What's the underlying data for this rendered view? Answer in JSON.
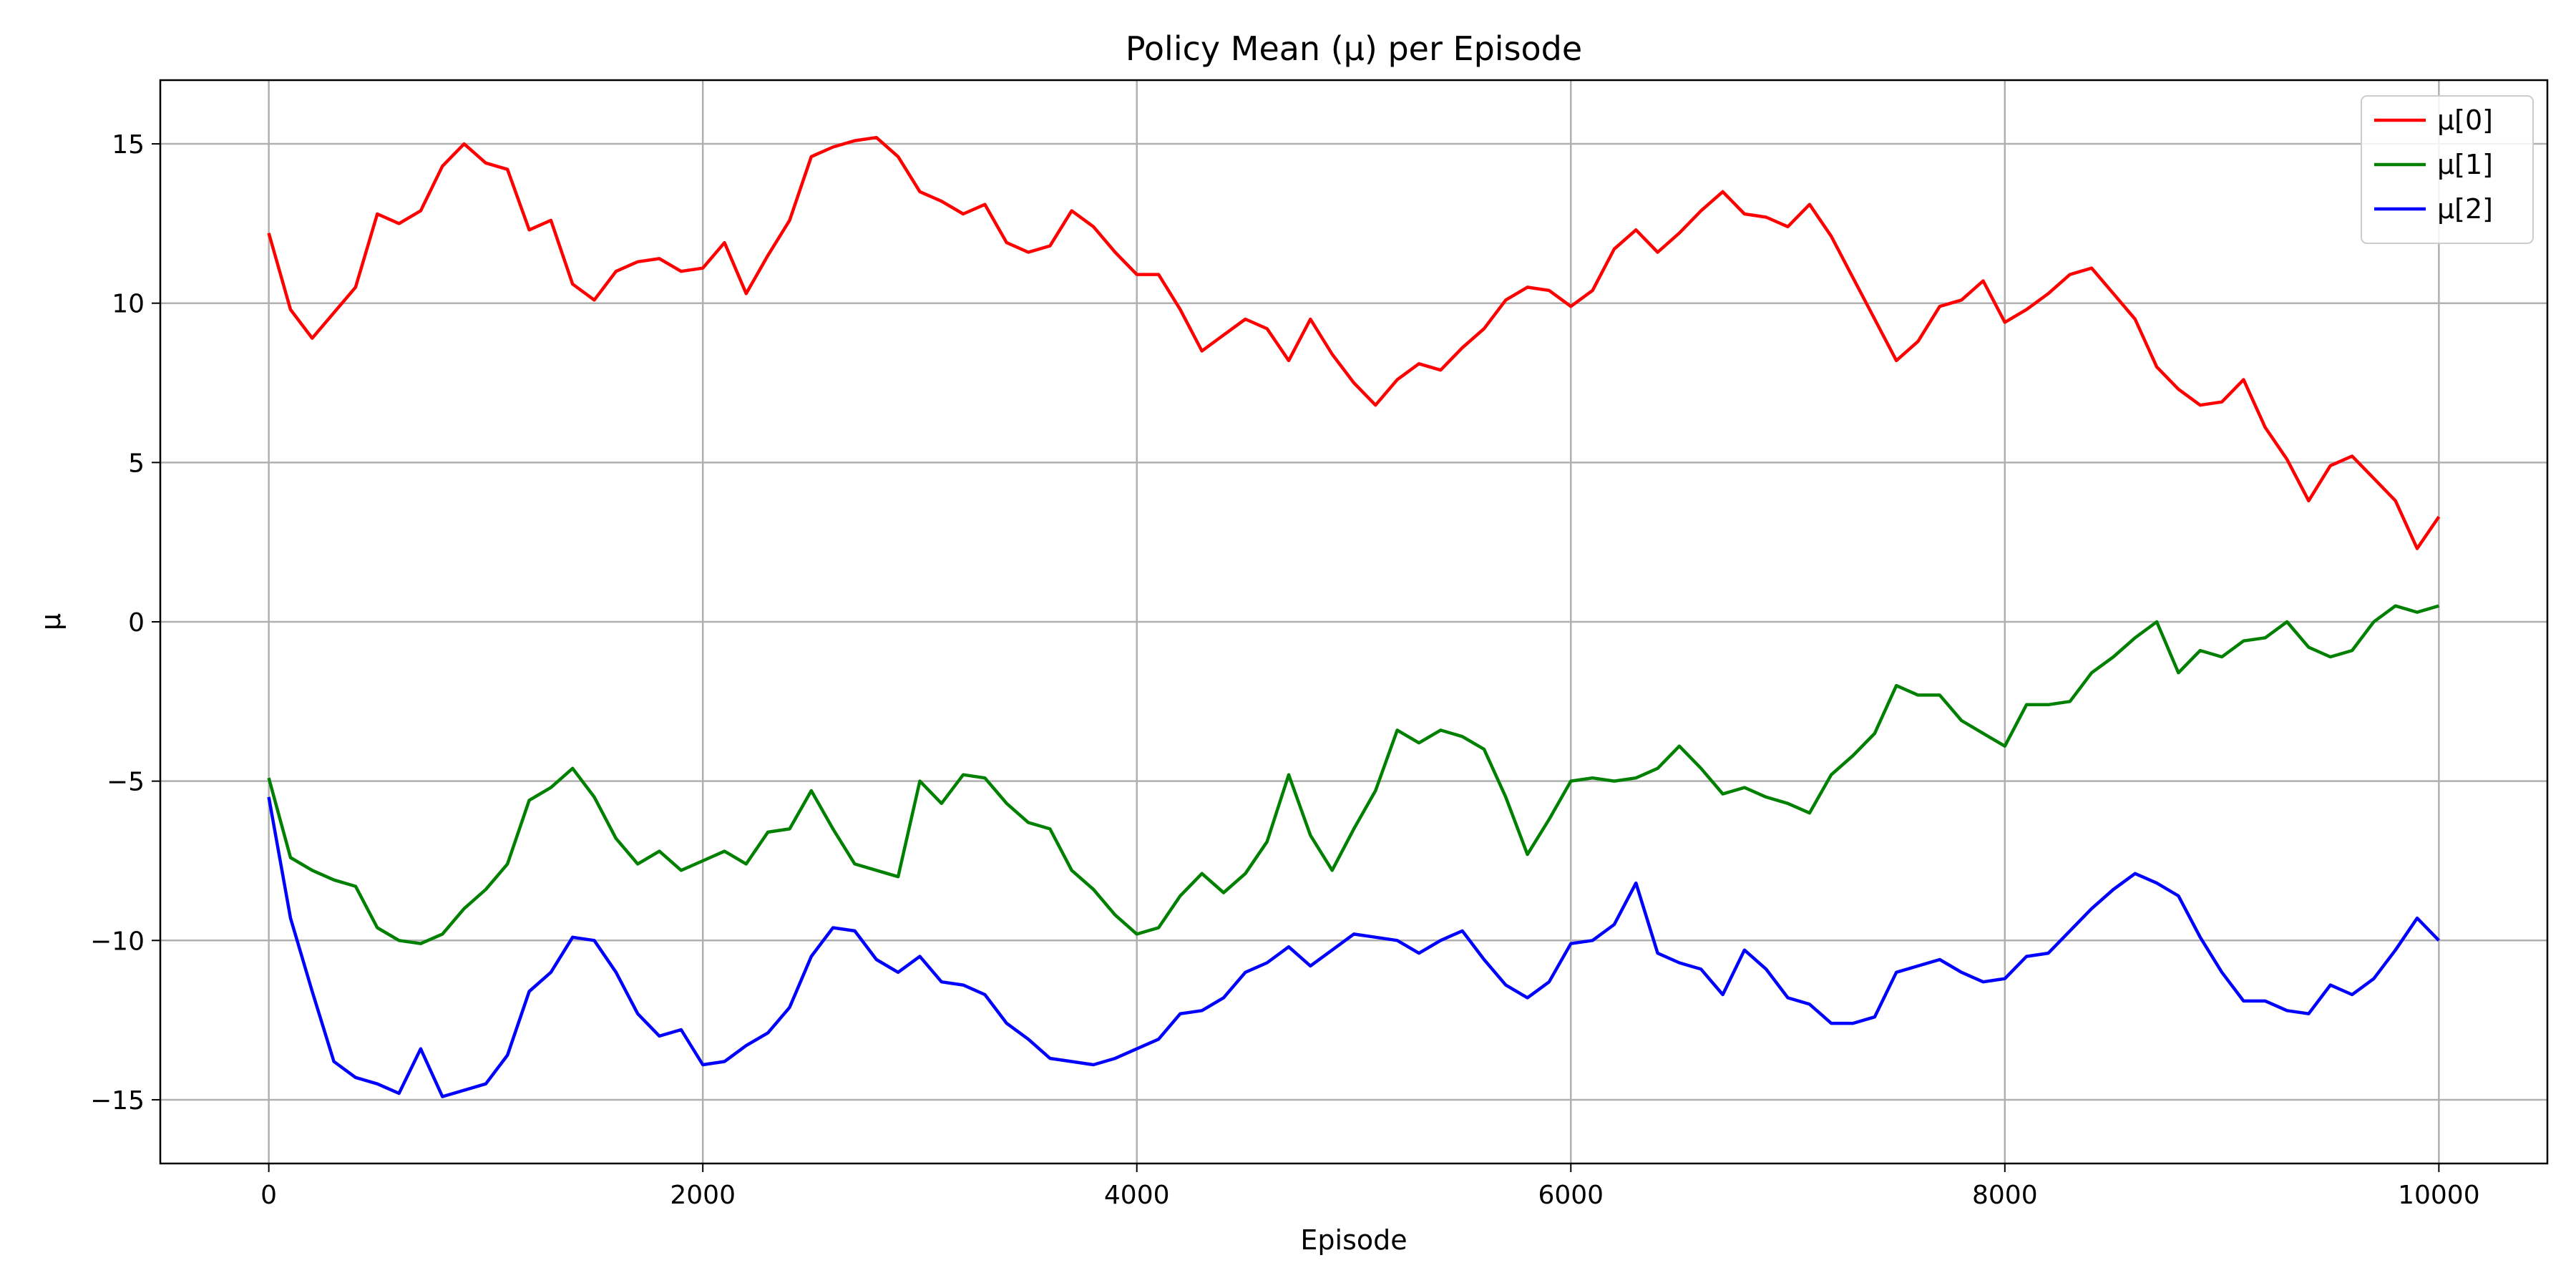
{
  "chart_data": {
    "type": "line",
    "title": "Policy Mean (μ) per Episode",
    "xlabel": "Episode",
    "ylabel": "μ",
    "xlim": [
      -500,
      10500
    ],
    "ylim": [
      -17,
      17
    ],
    "xticks": [
      0,
      2000,
      4000,
      6000,
      8000,
      10000
    ],
    "xtick_labels": [
      "0",
      "2000",
      "4000",
      "6000",
      "8000",
      "10000"
    ],
    "yticks": [
      -15,
      -10,
      -5,
      0,
      5,
      10,
      15
    ],
    "ytick_labels": [
      "−15",
      "−10",
      "−5",
      "0",
      "5",
      "10",
      "15"
    ],
    "grid": true,
    "legend_position": "top-right",
    "series": [
      {
        "name": "μ[0]",
        "color": "#ff0000",
        "x": [
          0,
          100,
          200,
          300,
          400,
          500,
          600,
          700,
          800,
          900,
          1000,
          1100,
          1200,
          1300,
          1400,
          1500,
          1600,
          1700,
          1800,
          1900,
          2000,
          2100,
          2200,
          2300,
          2400,
          2500,
          2600,
          2700,
          2800,
          2900,
          3000,
          3100,
          3200,
          3300,
          3400,
          3500,
          3600,
          3700,
          3800,
          3900,
          4000,
          4100,
          4200,
          4300,
          4400,
          4500,
          4600,
          4700,
          4800,
          4900,
          5000,
          5100,
          5200,
          5300,
          5400,
          5500,
          5600,
          5700,
          5800,
          5900,
          6000,
          6100,
          6200,
          6300,
          6400,
          6500,
          6600,
          6700,
          6800,
          6900,
          7000,
          7100,
          7200,
          7300,
          7400,
          7500,
          7600,
          7700,
          7800,
          7900,
          8000,
          8100,
          8200,
          8300,
          8400,
          8500,
          8600,
          8700,
          8800,
          8900,
          9000,
          9100,
          9200,
          9300,
          9400,
          9500,
          9600,
          9700,
          9800,
          9900,
          10000
        ],
        "y": [
          12.2,
          9.8,
          8.9,
          9.7,
          10.5,
          12.8,
          12.5,
          12.9,
          14.3,
          15.0,
          14.4,
          14.2,
          12.3,
          12.6,
          10.6,
          10.1,
          11.0,
          11.3,
          11.4,
          11.0,
          11.1,
          11.9,
          10.3,
          11.5,
          12.6,
          14.6,
          14.9,
          15.1,
          15.2,
          14.6,
          13.5,
          13.2,
          12.8,
          13.1,
          11.9,
          11.6,
          11.8,
          12.9,
          12.4,
          11.6,
          10.9,
          10.9,
          9.8,
          8.5,
          9.0,
          9.5,
          9.2,
          8.2,
          9.5,
          8.4,
          7.5,
          6.8,
          7.6,
          8.1,
          7.9,
          8.6,
          9.2,
          10.1,
          10.5,
          10.4,
          9.9,
          10.4,
          11.7,
          12.3,
          11.6,
          12.2,
          12.9,
          13.5,
          12.8,
          12.7,
          12.4,
          13.1,
          12.1,
          10.8,
          9.5,
          8.2,
          8.8,
          9.9,
          10.1,
          10.7,
          9.4,
          9.8,
          10.3,
          10.9,
          11.1,
          10.3,
          9.5,
          8.0,
          7.3,
          6.8,
          6.9,
          7.6,
          6.1,
          5.1,
          3.8,
          4.9,
          5.2,
          4.5,
          3.8,
          2.3,
          3.3
        ]
      },
      {
        "name": "μ[1]",
        "color": "#008000",
        "x": [
          0,
          100,
          200,
          300,
          400,
          500,
          600,
          700,
          800,
          900,
          1000,
          1100,
          1200,
          1300,
          1400,
          1500,
          1600,
          1700,
          1800,
          1900,
          2000,
          2100,
          2200,
          2300,
          2400,
          2500,
          2600,
          2700,
          2800,
          2900,
          3000,
          3100,
          3200,
          3300,
          3400,
          3500,
          3600,
          3700,
          3800,
          3900,
          4000,
          4100,
          4200,
          4300,
          4400,
          4500,
          4600,
          4700,
          4800,
          4900,
          5000,
          5100,
          5200,
          5300,
          5400,
          5500,
          5600,
          5700,
          5800,
          5900,
          6000,
          6100,
          6200,
          6300,
          6400,
          6500,
          6600,
          6700,
          6800,
          6900,
          7000,
          7100,
          7200,
          7300,
          7400,
          7500,
          7600,
          7700,
          7800,
          7900,
          8000,
          8100,
          8200,
          8300,
          8400,
          8500,
          8600,
          8700,
          8800,
          8900,
          9000,
          9100,
          9200,
          9300,
          9400,
          9500,
          9600,
          9700,
          9800,
          9900,
          10000
        ],
        "y": [
          -4.9,
          -7.4,
          -7.8,
          -8.1,
          -8.3,
          -9.6,
          -10.0,
          -10.1,
          -9.8,
          -9.0,
          -8.4,
          -7.6,
          -5.6,
          -5.2,
          -4.6,
          -5.5,
          -6.8,
          -7.6,
          -7.2,
          -7.8,
          -7.5,
          -7.2,
          -7.6,
          -6.6,
          -6.5,
          -5.3,
          -6.5,
          -7.6,
          -7.8,
          -8.0,
          -5.0,
          -5.7,
          -4.8,
          -4.9,
          -5.7,
          -6.3,
          -6.5,
          -7.8,
          -8.4,
          -9.2,
          -9.8,
          -9.6,
          -8.6,
          -7.9,
          -8.5,
          -7.9,
          -6.9,
          -4.8,
          -6.7,
          -7.8,
          -6.5,
          -5.3,
          -3.4,
          -3.8,
          -3.4,
          -3.6,
          -4.0,
          -5.5,
          -7.3,
          -6.2,
          -5.0,
          -4.9,
          -5.0,
          -4.9,
          -4.6,
          -3.9,
          -4.6,
          -5.4,
          -5.2,
          -5.5,
          -5.7,
          -6.0,
          -4.8,
          -4.2,
          -3.5,
          -2.0,
          -2.3,
          -2.3,
          -3.1,
          -3.5,
          -3.9,
          -2.6,
          -2.6,
          -2.5,
          -1.6,
          -1.1,
          -0.5,
          0.0,
          -1.6,
          -0.9,
          -1.1,
          -0.6,
          -0.5,
          0.0,
          -0.8,
          -1.1,
          -0.9,
          0.0,
          0.5,
          0.3,
          0.5
        ]
      },
      {
        "name": "μ[2]",
        "color": "#0000ff",
        "x": [
          0,
          100,
          200,
          300,
          400,
          500,
          600,
          700,
          800,
          900,
          1000,
          1100,
          1200,
          1300,
          1400,
          1500,
          1600,
          1700,
          1800,
          1900,
          2000,
          2100,
          2200,
          2300,
          2400,
          2500,
          2600,
          2700,
          2800,
          2900,
          3000,
          3100,
          3200,
          3300,
          3400,
          3500,
          3600,
          3700,
          3800,
          3900,
          4000,
          4100,
          4200,
          4300,
          4400,
          4500,
          4600,
          4700,
          4800,
          4900,
          5000,
          5100,
          5200,
          5300,
          5400,
          5500,
          5600,
          5700,
          5800,
          5900,
          6000,
          6100,
          6200,
          6300,
          6400,
          6500,
          6600,
          6700,
          6800,
          6900,
          7000,
          7100,
          7200,
          7300,
          7400,
          7500,
          7600,
          7700,
          7800,
          7900,
          8000,
          8100,
          8200,
          8300,
          8400,
          8500,
          8600,
          8700,
          8800,
          8900,
          9000,
          9100,
          9200,
          9300,
          9400,
          9500,
          9600,
          9700,
          9800,
          9900,
          10000
        ],
        "y": [
          -5.5,
          -9.3,
          -11.6,
          -13.8,
          -14.3,
          -14.5,
          -14.8,
          -13.4,
          -14.9,
          -14.7,
          -14.5,
          -13.6,
          -11.6,
          -11.0,
          -9.9,
          -10.0,
          -11.0,
          -12.3,
          -13.0,
          -12.8,
          -13.9,
          -13.8,
          -13.3,
          -12.9,
          -12.1,
          -10.5,
          -9.6,
          -9.7,
          -10.6,
          -11.0,
          -10.5,
          -11.3,
          -11.4,
          -11.7,
          -12.6,
          -13.1,
          -13.7,
          -13.8,
          -13.9,
          -13.7,
          -13.4,
          -13.1,
          -12.3,
          -12.2,
          -11.8,
          -11.0,
          -10.7,
          -10.2,
          -10.8,
          -10.3,
          -9.8,
          -9.9,
          -10.0,
          -10.4,
          -10.0,
          -9.7,
          -10.6,
          -11.4,
          -11.8,
          -11.3,
          -10.1,
          -10.0,
          -9.5,
          -8.2,
          -10.4,
          -10.7,
          -10.9,
          -11.7,
          -10.3,
          -10.9,
          -11.8,
          -12.0,
          -12.6,
          -12.6,
          -12.4,
          -11.0,
          -10.8,
          -10.6,
          -11.0,
          -11.3,
          -11.2,
          -10.5,
          -10.4,
          -9.7,
          -9.0,
          -8.4,
          -7.9,
          -8.2,
          -8.6,
          -9.9,
          -11.0,
          -11.9,
          -11.9,
          -12.2,
          -12.3,
          -11.4,
          -11.7,
          -11.2,
          -10.3,
          -9.3,
          -10.0
        ]
      }
    ]
  }
}
